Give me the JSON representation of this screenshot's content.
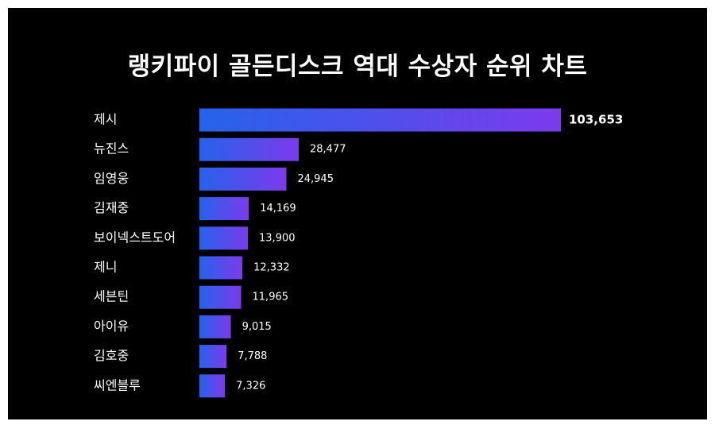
{
  "chart_data": {
    "type": "bar",
    "orientation": "horizontal",
    "title": "랭키파이 골든디스크 역대 수상자 순위 차트",
    "categories": [
      "제시",
      "뉴진스",
      "임영웅",
      "김재중",
      "보이넥스트도어",
      "제니",
      "세븐틴",
      "아이유",
      "김호중",
      "씨엔블루"
    ],
    "values": [
      103653,
      28477,
      24945,
      14169,
      13900,
      12332,
      11965,
      9015,
      7788,
      7326
    ],
    "value_labels": [
      "103,653",
      "28,477",
      "24,945",
      "14,169",
      "13,900",
      "12,332",
      "11,965",
      "9,015",
      "7,788",
      "7,326"
    ],
    "xlim": [
      0,
      103653
    ],
    "grid": false,
    "legend": "none",
    "colors": {
      "background": "#000000",
      "bar_start": "#2563eb",
      "bar_end": "#7c3aed",
      "text": "#ffffff"
    }
  }
}
